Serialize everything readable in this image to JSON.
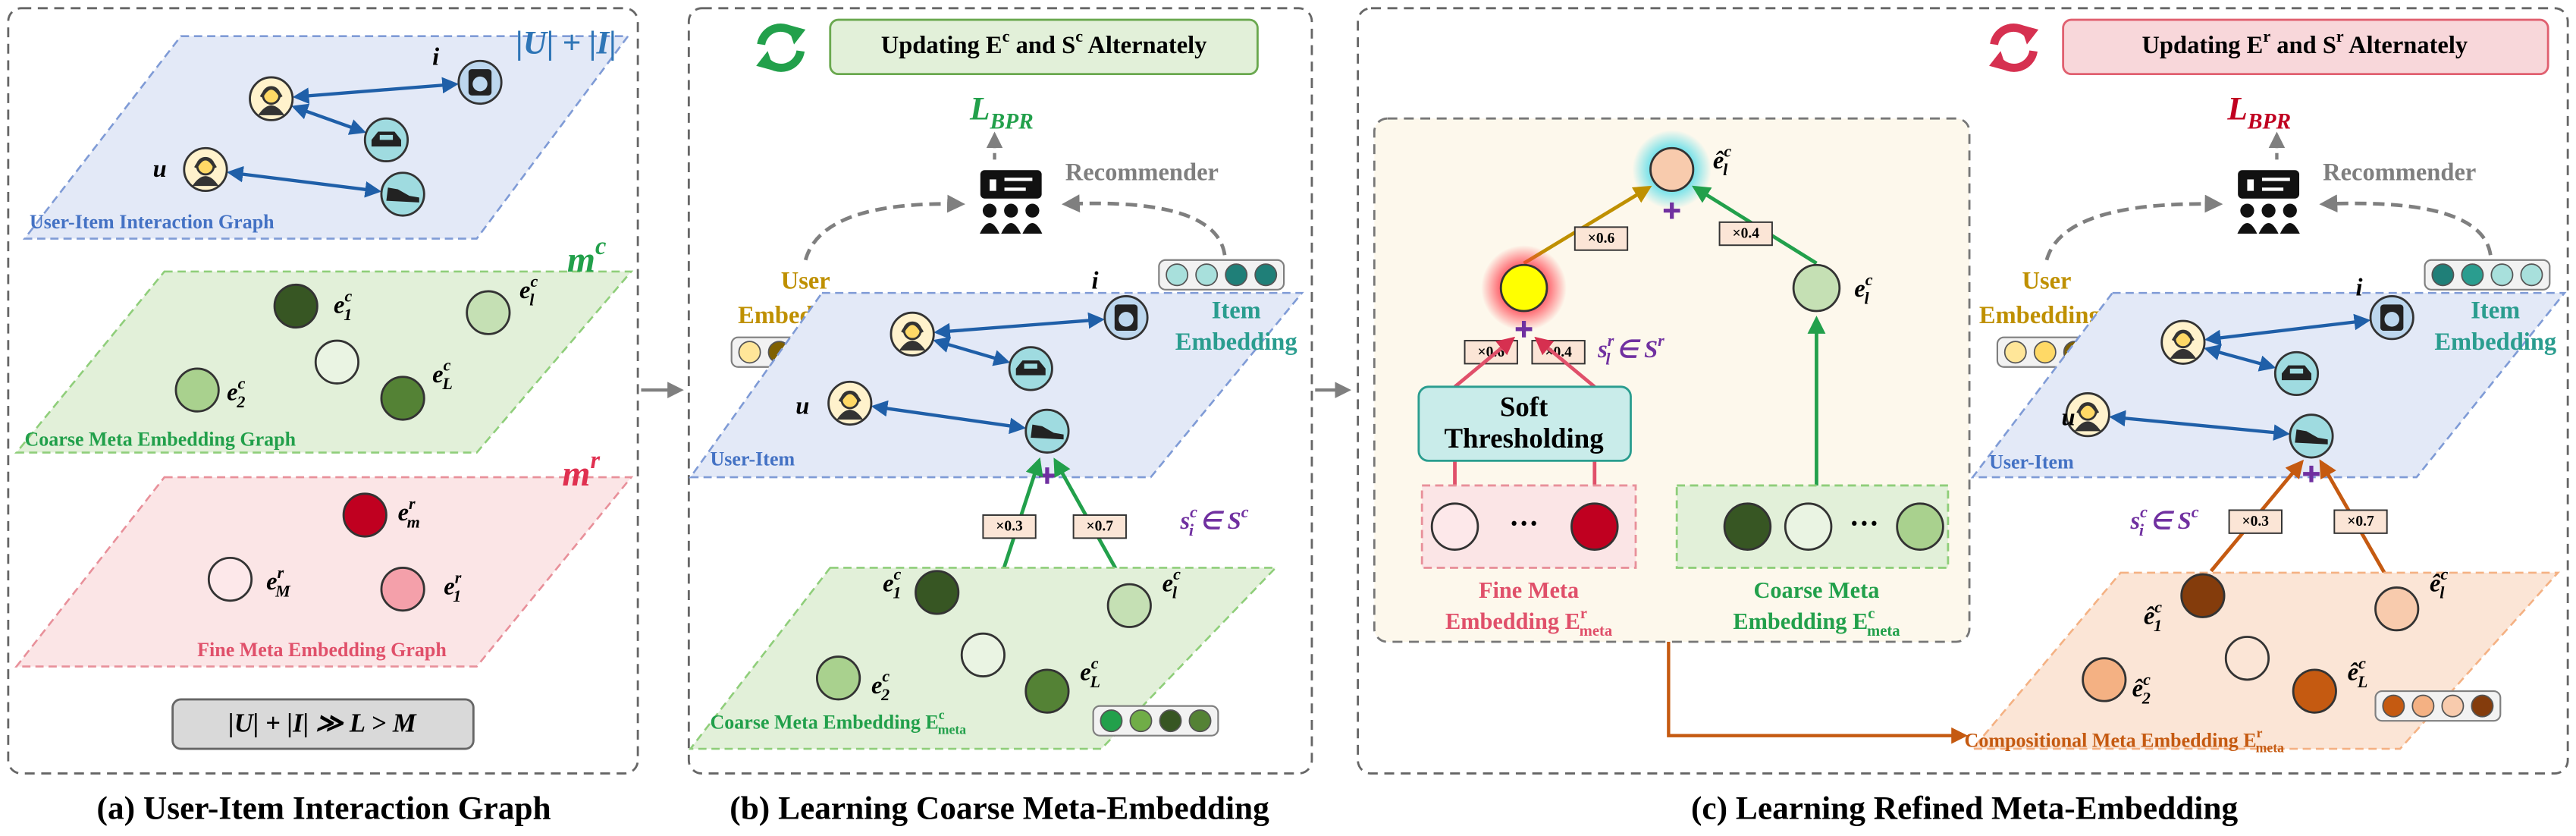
{
  "panel_a": {
    "count_label": "|U| + |I|",
    "item_label": "i",
    "user_label": "u",
    "graph_label": "User-Item Interaction Graph",
    "coarse_symbol": [
      {
        "text": "m",
        "sup": "c"
      }
    ],
    "coarse_nodes": [
      [
        {
          "text": "e",
          "sub": "1",
          "sup": "c"
        }
      ],
      [
        {
          "text": "e",
          "sub": "l",
          "sup": "c"
        }
      ],
      [
        {
          "text": "e",
          "sub": "2",
          "sup": "c"
        }
      ],
      [
        {
          "text": "e",
          "sub": "L",
          "sup": "c"
        }
      ]
    ],
    "coarse_label": "Coarse Meta Embedding Graph",
    "fine_symbol": [
      {
        "text": "m",
        "sup": "r"
      }
    ],
    "fine_nodes": [
      [
        {
          "text": "e",
          "sub": "m",
          "sup": "r"
        }
      ],
      [
        {
          "text": "e",
          "sub": "M",
          "sup": "r"
        }
      ],
      [
        {
          "text": "e",
          "sub": "1",
          "sup": "r"
        }
      ]
    ],
    "fine_label": "Fine Meta Embedding Graph",
    "relation": "|U| + |I| ≫ L > M",
    "caption": "(a) User-Item Interaction Graph"
  },
  "panel_b": {
    "banner": [
      {
        "text": "Updating "
      },
      {
        "text": "E",
        "sup": "c"
      },
      {
        "text": " and "
      },
      {
        "text": "S",
        "sup": "c"
      },
      {
        "text": " Alternately"
      }
    ],
    "loss": [
      {
        "text": "L",
        "sub": "BPR"
      }
    ],
    "recommender": "Recommender",
    "user_embedding": [
      "User",
      "Embedding"
    ],
    "item_embedding": [
      "Item",
      "Embedding"
    ],
    "item_label": "i",
    "user_label": "u",
    "graph_label": "User-Item",
    "weights": [
      "×0.3",
      "×0.7"
    ],
    "score": [
      {
        "text": "s",
        "sub": "i",
        "sup": "c"
      },
      {
        "text": " ∈ "
      },
      {
        "text": "S",
        "sup": "c"
      }
    ],
    "coarse_nodes": [
      [
        {
          "text": "e",
          "sub": "1",
          "sup": "c"
        }
      ],
      [
        {
          "text": "e",
          "sub": "l",
          "sup": "c"
        }
      ],
      [
        {
          "text": "e",
          "sub": "2",
          "sup": "c"
        }
      ],
      [
        {
          "text": "e",
          "sub": "L",
          "sup": "c"
        }
      ]
    ],
    "coarse_label": [
      {
        "text": "Coarse Meta Embedding "
      },
      {
        "text": "E",
        "sup": "c",
        "sub": "meta"
      }
    ],
    "caption": "(b) Learning Coarse Meta-Embedding"
  },
  "panel_c": {
    "banner": [
      {
        "text": "Updating "
      },
      {
        "text": "E",
        "sup": "r"
      },
      {
        "text": " and "
      },
      {
        "text": "S",
        "sup": "r"
      },
      {
        "text": " Alternately"
      }
    ],
    "composed_node": [
      {
        "text": "ê",
        "sub": "l",
        "sup": "c"
      }
    ],
    "top_weights": [
      "×0.6",
      "×0.4"
    ],
    "coarse_node": [
      {
        "text": "e",
        "sub": "l",
        "sup": "c"
      }
    ],
    "fine_weights": [
      "×0.6",
      "×0.4"
    ],
    "fine_score": [
      {
        "text": "s",
        "sub": "l",
        "sup": "r"
      },
      {
        "text": " ∈ "
      },
      {
        "text": "S",
        "sup": "r"
      }
    ],
    "soft_thresholding": [
      "Soft",
      "Thresholding"
    ],
    "fine_ellipsis": "···",
    "coarse_ellipsis": "···",
    "fine_label": [
      "Fine Meta",
      [
        {
          "text": "Embedding "
        },
        {
          "text": "E",
          "sup": "r",
          "sub": "meta"
        }
      ]
    ],
    "coarse_label": [
      "Coarse Meta",
      [
        {
          "text": "Embedding "
        },
        {
          "text": "E",
          "sup": "c",
          "sub": "meta"
        }
      ]
    ],
    "loss": [
      {
        "text": "L",
        "sub": "BPR"
      }
    ],
    "recommender": "Recommender",
    "user_embedding": [
      "User",
      "Embedding"
    ],
    "item_embedding": [
      "Item",
      "Embedding"
    ],
    "item_label": "i",
    "user_label": "u",
    "graph_label": "User-Item",
    "score": [
      {
        "text": "s",
        "sub": "i",
        "sup": "c"
      },
      {
        "text": " ∈ "
      },
      {
        "text": "S",
        "sup": "c"
      }
    ],
    "weights": [
      "×0.3",
      "×0.7"
    ],
    "compositional_nodes": [
      [
        {
          "text": "ê",
          "sub": "1",
          "sup": "c"
        }
      ],
      [
        {
          "text": "ê",
          "sub": "l",
          "sup": "c"
        }
      ],
      [
        {
          "text": "ê",
          "sub": "2",
          "sup": "c"
        }
      ],
      [
        {
          "text": "ê",
          "sub": "L",
          "sup": "c"
        }
      ]
    ],
    "compositional_label": [
      {
        "text": "Compositional Meta Embedding "
      },
      {
        "text": "E",
        "sup": "r",
        "sub": "meta"
      }
    ],
    "caption": "(c) Learning Refined Meta-Embedding"
  }
}
